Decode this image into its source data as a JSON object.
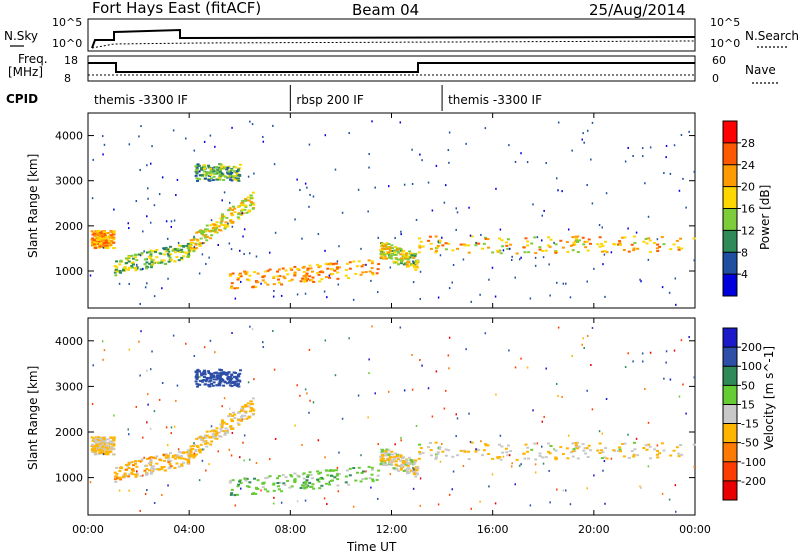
{
  "header": {
    "station": "Fort Hays East (fitACF)",
    "beam": "Beam 04",
    "date": "25/Aug/2014"
  },
  "sky_panel": {
    "left_label": "N.Sky",
    "right_label": "N.Search",
    "left_ticks": [
      "10^5",
      "10^0"
    ],
    "right_ticks": [
      "10^5",
      "10^0"
    ]
  },
  "freq_panel": {
    "left_label_1": "Freq.",
    "left_label_2": "[MHz]",
    "right_label": "Nave",
    "left_ticks": [
      "18",
      "8"
    ],
    "right_ticks": [
      "60",
      "0"
    ]
  },
  "cpid": {
    "label": "CPID",
    "segments": [
      {
        "name": "themis -3300 IF",
        "start_hour": 0,
        "end_hour": 8
      },
      {
        "name": "rbsp 200 IF",
        "start_hour": 8,
        "end_hour": 14
      },
      {
        "name": "themis -3300 IF",
        "start_hour": 14,
        "end_hour": 24
      }
    ]
  },
  "axes": {
    "x_label": "Time UT",
    "x_ticks": [
      "00:00",
      "04:00",
      "08:00",
      "12:00",
      "16:00",
      "20:00",
      "00:00"
    ],
    "y_label_power": "Slant Range [km]",
    "y_label_velocity": "Slant Range [km]",
    "y_ticks": [
      "4000",
      "3000",
      "2000",
      "1000"
    ]
  },
  "power_colorbar": {
    "label": "Power [dB]",
    "ticks": [
      "28",
      "24",
      "20",
      "16",
      "12",
      "8",
      "4"
    ],
    "colors": [
      "#ff0000",
      "#ff5a00",
      "#ff9a00",
      "#ffd700",
      "#7dcc3a",
      "#2e8b57",
      "#1e4fa0",
      "#0000dd"
    ]
  },
  "velocity_colorbar": {
    "label": "Velocity [m s^-1]",
    "ticks": [
      "200",
      "100",
      "50",
      "15",
      "-15",
      "-50",
      "-100",
      "-200"
    ],
    "colors": [
      "#1a1ac8",
      "#2e4fa8",
      "#2e8b57",
      "#66cc33",
      "#c8c8c8",
      "#ffb400",
      "#ff7a00",
      "#ff3c00",
      "#e80000"
    ]
  },
  "chart_data": {
    "type": "heatmap",
    "x_range_hours": [
      0,
      24
    ],
    "y_range_km": [
      180,
      4500
    ],
    "scatter_bands": [
      {
        "name": "band-a",
        "t0": 0.1,
        "t1": 1.0,
        "r0": 1720,
        "r1": 1720,
        "power_db": 22,
        "velocity": -20
      },
      {
        "name": "band-b",
        "t0": 1.0,
        "t1": 4.0,
        "r0": 1100,
        "r1": 1500,
        "power_db": 14,
        "velocity": -25
      },
      {
        "name": "band-c",
        "t0": 4.0,
        "t1": 6.5,
        "r0": 1600,
        "r1": 2600,
        "power_db": 18,
        "velocity": -20
      },
      {
        "name": "band-d",
        "t0": 5.5,
        "t1": 11.5,
        "r0": 800,
        "r1": 1100,
        "power_db": 22,
        "velocity": 30
      },
      {
        "name": "band-e",
        "t0": 4.2,
        "t1": 6.0,
        "r0": 3200,
        "r1": 3200,
        "power_db": 12,
        "velocity": 150
      },
      {
        "name": "band-f",
        "t0": 11.5,
        "t1": 13.0,
        "r0": 1500,
        "r1": 1200,
        "power_db": 16,
        "velocity": -10
      },
      {
        "name": "band-g",
        "t0": 13.0,
        "t1": 24.0,
        "r0": 1600,
        "r1": 1600,
        "power_db": 20,
        "velocity": -10
      }
    ]
  }
}
